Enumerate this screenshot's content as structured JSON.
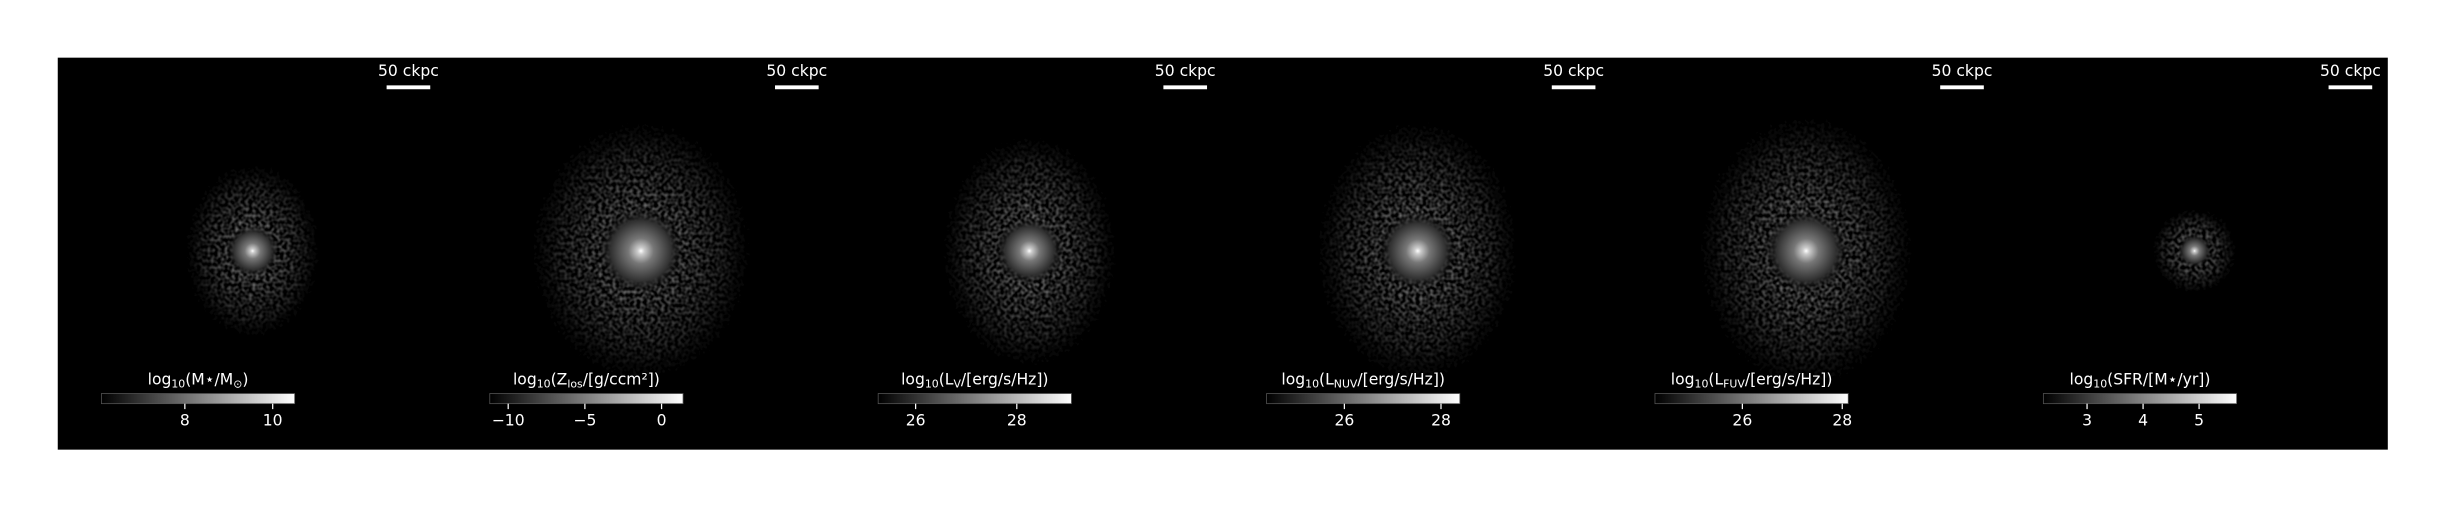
{
  "chart_data": [
    {
      "type": "image",
      "scale_bar_label": "50 ckpc",
      "colorbar_label": [
        {
          "text": "log"
        },
        {
          "text": "10",
          "sub": true
        },
        {
          "text": "(M⋆/M"
        },
        {
          "text": "⊙",
          "sub": true
        },
        {
          "text": ")"
        }
      ],
      "clim": [
        6.1,
        10.5
      ],
      "cticks": [
        8,
        10
      ]
    },
    {
      "type": "image",
      "scale_bar_label": "50 ckpc",
      "colorbar_label": [
        {
          "text": "log"
        },
        {
          "text": "10",
          "sub": true
        },
        {
          "text": "(Z"
        },
        {
          "text": "los",
          "sub": true
        },
        {
          "text": "/[g/ccm²])"
        }
      ],
      "clim": [
        -11.2,
        1.4
      ],
      "cticks": [
        {
          "value": -10,
          "label": "−10"
        },
        {
          "value": -5,
          "label": "−5"
        },
        0
      ]
    },
    {
      "type": "image",
      "scale_bar_label": "50 ckpc",
      "colorbar_label": [
        {
          "text": "log"
        },
        {
          "text": "10",
          "sub": true
        },
        {
          "text": "(L"
        },
        {
          "text": "V",
          "sub": true
        },
        {
          "text": "/[erg/s/Hz])"
        }
      ],
      "clim": [
        25.26,
        29.08
      ],
      "cticks": [
        26,
        28
      ]
    },
    {
      "type": "image",
      "scale_bar_label": "50 ckpc",
      "colorbar_label": [
        {
          "text": "log"
        },
        {
          "text": "10",
          "sub": true
        },
        {
          "text": "(L"
        },
        {
          "text": "NUV",
          "sub": true
        },
        {
          "text": "/[erg/s/Hz])"
        }
      ],
      "clim": [
        24.39,
        28.39
      ],
      "cticks": [
        26,
        28
      ]
    },
    {
      "type": "image",
      "scale_bar_label": "50 ckpc",
      "colorbar_label": [
        {
          "text": "log"
        },
        {
          "text": "10",
          "sub": true
        },
        {
          "text": "(L"
        },
        {
          "text": "FUV",
          "sub": true
        },
        {
          "text": "/[erg/s/Hz])"
        }
      ],
      "clim": [
        24.25,
        28.12
      ],
      "cticks": [
        26,
        28
      ]
    },
    {
      "type": "image",
      "scale_bar_label": "50 ckpc",
      "colorbar_label": [
        {
          "text": "log"
        },
        {
          "text": "10",
          "sub": true
        },
        {
          "text": "(SFR/[M⋆/yr])"
        }
      ],
      "clim": [
        2.22,
        5.67
      ],
      "cticks": [
        3,
        4,
        5
      ]
    }
  ]
}
